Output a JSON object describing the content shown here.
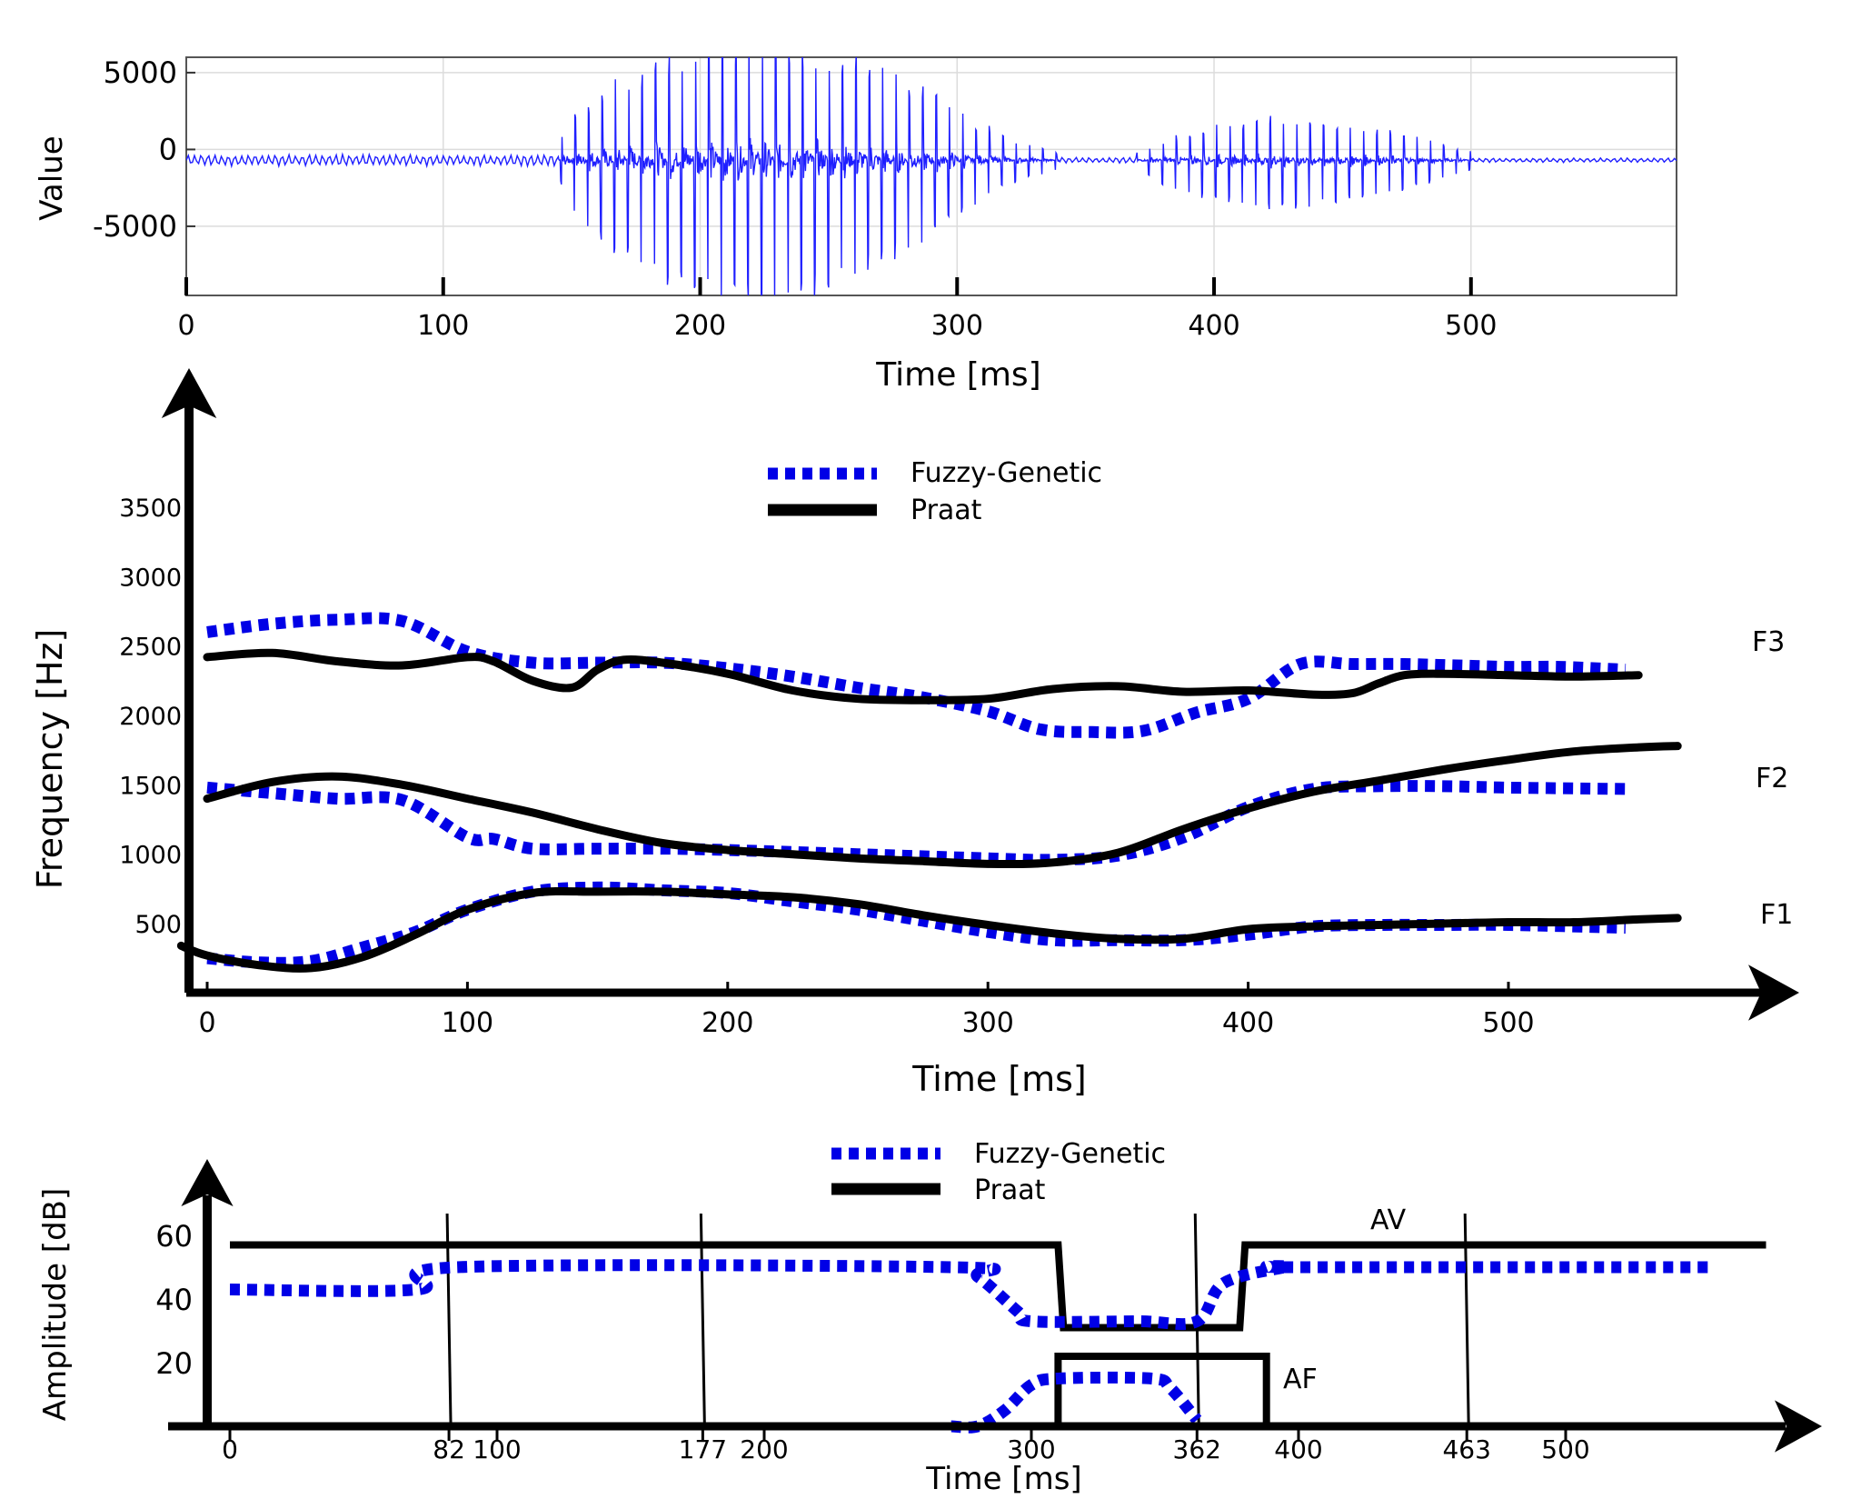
{
  "chart_data": [
    {
      "type": "line",
      "ylabel": "Value",
      "xlabel": "Time [ms]",
      "xlim": [
        0,
        580
      ],
      "ylim": [
        -9500,
        6000
      ],
      "xticks": [
        0,
        100,
        200,
        300,
        400,
        500
      ],
      "yticks": [
        5000,
        0,
        -5000
      ],
      "x_tick_labels": [
        "0",
        "100",
        "200",
        "300",
        "400",
        "500"
      ],
      "y_tick_labels": [
        "5000",
        "0",
        "-5000"
      ],
      "grid": true,
      "series": [
        {
          "color": "#1f1fff",
          "segments": [
            {
              "x_start": 0,
              "x_end": 145,
              "amplitude": 400,
              "baseline": -700
            },
            {
              "x_start": 145,
              "x_end": 340,
              "envelope": [
                [
                  145,
                  1000
                ],
                [
                  150,
                  3500
                ],
                [
                  170,
                  6000
                ],
                [
                  200,
                  8500
                ],
                [
                  225,
                  9000
                ],
                [
                  250,
                  8000
                ],
                [
                  275,
                  6000
                ],
                [
                  300,
                  3500
                ],
                [
                  320,
                  1500
                ],
                [
                  340,
                  500
                ]
              ]
            },
            {
              "x_start": 340,
              "x_end": 370,
              "amplitude": 200
            },
            {
              "x_start": 370,
              "x_end": 500,
              "envelope": [
                [
                  370,
                  500
                ],
                [
                  380,
                  1500
                ],
                [
                  400,
                  2500
                ],
                [
                  425,
                  3000
                ],
                [
                  450,
                  2500
                ],
                [
                  475,
                  1800
                ],
                [
                  500,
                  600
                ]
              ]
            },
            {
              "x_start": 500,
              "x_end": 580,
              "amplitude": 150
            }
          ]
        }
      ]
    },
    {
      "type": "line",
      "ylabel": "Frequency [Hz]",
      "xlabel": "Time [ms]",
      "xlim": [
        0,
        575
      ],
      "ylim": [
        0,
        3850
      ],
      "xticks": [
        0,
        100,
        200,
        300,
        400,
        500
      ],
      "yticks": [
        500,
        1000,
        1500,
        2000,
        2500,
        3000,
        3500
      ],
      "x_tick_labels": [
        "0",
        "100",
        "200",
        "300",
        "400",
        "500"
      ],
      "y_tick_labels": [
        "500",
        "1000",
        "1500",
        "2000",
        "2500",
        "3000",
        "3500"
      ],
      "legend": [
        "Fuzzy-Genetic",
        "Praat"
      ],
      "legend_position": "top-center",
      "annotations": [
        "F3",
        "F2",
        "F1"
      ],
      "series": [
        {
          "name": "Fuzzy-Genetic",
          "formant": "F3",
          "style": "dotted",
          "color": "#0000e6",
          "x": [
            0,
            25,
            50,
            75,
            100,
            125,
            150,
            175,
            200,
            225,
            250,
            275,
            300,
            320,
            340,
            360,
            380,
            400,
            420,
            440,
            460,
            480,
            500,
            520,
            545
          ],
          "y": [
            2600,
            2660,
            2690,
            2680,
            2460,
            2380,
            2380,
            2380,
            2340,
            2280,
            2200,
            2130,
            2030,
            1900,
            1880,
            1890,
            2020,
            2120,
            2370,
            2370,
            2370,
            2360,
            2350,
            2350,
            2330
          ]
        },
        {
          "name": "Praat",
          "formant": "F3",
          "style": "solid",
          "color": "#000000",
          "x": [
            0,
            25,
            50,
            75,
            100,
            110,
            125,
            140,
            150,
            160,
            175,
            200,
            225,
            250,
            275,
            300,
            325,
            350,
            375,
            400,
            425,
            440,
            450,
            460,
            475,
            500,
            525,
            550
          ],
          "y": [
            2420,
            2450,
            2390,
            2360,
            2420,
            2390,
            2250,
            2200,
            2330,
            2400,
            2380,
            2300,
            2180,
            2120,
            2110,
            2120,
            2190,
            2210,
            2170,
            2180,
            2150,
            2160,
            2230,
            2290,
            2300,
            2290,
            2280,
            2290
          ]
        },
        {
          "name": "Fuzzy-Genetic",
          "formant": "F2",
          "style": "dotted",
          "color": "#0000e6",
          "x": [
            0,
            25,
            50,
            75,
            100,
            110,
            125,
            150,
            175,
            200,
            250,
            300,
            325,
            350,
            375,
            400,
            425,
            450,
            475,
            500,
            545
          ],
          "y": [
            1480,
            1440,
            1400,
            1390,
            1120,
            1110,
            1040,
            1040,
            1040,
            1030,
            1000,
            970,
            960,
            990,
            1120,
            1340,
            1470,
            1490,
            1490,
            1480,
            1470
          ]
        },
        {
          "name": "Praat",
          "formant": "F2",
          "style": "solid",
          "color": "#000000",
          "x": [
            0,
            25,
            50,
            75,
            100,
            125,
            150,
            175,
            200,
            225,
            250,
            275,
            300,
            325,
            350,
            375,
            400,
            425,
            450,
            475,
            500,
            525,
            550,
            565
          ],
          "y": [
            1400,
            1520,
            1560,
            1500,
            1400,
            1300,
            1180,
            1080,
            1030,
            1000,
            970,
            950,
            930,
            940,
            1010,
            1180,
            1330,
            1450,
            1530,
            1610,
            1680,
            1740,
            1770,
            1780
          ]
        },
        {
          "name": "Fuzzy-Genetic",
          "formant": "F1",
          "style": "dotted",
          "color": "#0000e6",
          "x": [
            0,
            20,
            40,
            60,
            80,
            100,
            125,
            150,
            175,
            200,
            225,
            250,
            275,
            300,
            325,
            350,
            375,
            400,
            425,
            450,
            475,
            500,
            545
          ],
          "y": [
            250,
            220,
            230,
            330,
            440,
            600,
            730,
            760,
            740,
            720,
            660,
            600,
            520,
            440,
            380,
            380,
            380,
            420,
            480,
            490,
            490,
            490,
            470
          ]
        },
        {
          "name": "Praat",
          "formant": "F1",
          "style": "solid",
          "color": "#000000",
          "x": [
            -10,
            0,
            20,
            40,
            60,
            80,
            100,
            125,
            150,
            175,
            200,
            225,
            250,
            275,
            300,
            325,
            350,
            375,
            400,
            425,
            450,
            475,
            500,
            525,
            550,
            565
          ],
          "y": [
            340,
            270,
            200,
            180,
            260,
            420,
            600,
            720,
            730,
            730,
            710,
            690,
            640,
            560,
            490,
            430,
            390,
            390,
            460,
            480,
            490,
            500,
            510,
            510,
            530,
            540
          ]
        }
      ]
    },
    {
      "type": "line",
      "ylabel": "Amplitude [dB]",
      "xlabel": "Time [ms]",
      "xlim": [
        0,
        580
      ],
      "ylim": [
        0,
        70
      ],
      "xticks": [
        0,
        82,
        100,
        177,
        200,
        300,
        362,
        400,
        463,
        500
      ],
      "yticks": [
        20,
        40,
        60
      ],
      "x_tick_labels": [
        "0",
        "82",
        "100",
        "177",
        "200",
        "300",
        "362",
        "400",
        "463",
        "500"
      ],
      "y_tick_labels": [
        "20",
        "40",
        "60"
      ],
      "legend": [
        "Fuzzy-Genetic",
        "Praat"
      ],
      "legend_position": "top-center",
      "annotations": [
        "AV",
        "AF"
      ],
      "vertical_markers": [
        82,
        177,
        362,
        463
      ],
      "series": [
        {
          "name": "Praat",
          "parameter": "AV",
          "style": "solid",
          "color": "#000000",
          "x": [
            0,
            310,
            312,
            378,
            380,
            575
          ],
          "y": [
            57,
            57,
            31,
            31,
            57,
            57
          ]
        },
        {
          "name": "Fuzzy-Genetic",
          "parameter": "AV",
          "style": "dotted",
          "color": "#0000e6",
          "x": [
            0,
            70,
            85,
            270,
            280,
            295,
            300,
            340,
            362,
            372,
            395,
            400,
            555
          ],
          "y": [
            43,
            43,
            50,
            50,
            47,
            36,
            33,
            33,
            33,
            45,
            50,
            50,
            50
          ]
        },
        {
          "name": "Praat",
          "parameter": "AF",
          "style": "solid",
          "color": "#000000",
          "x": [
            0,
            310,
            310,
            388,
            388,
            580
          ],
          "y": [
            0,
            0,
            22,
            22,
            0,
            0
          ]
        },
        {
          "name": "Fuzzy-Genetic",
          "parameter": "AF",
          "style": "dotted",
          "color": "#0000e6",
          "x": [
            270,
            280,
            290,
            300,
            310,
            345,
            352,
            362
          ],
          "y": [
            0,
            0,
            5,
            13,
            15,
            15,
            12,
            2
          ]
        }
      ]
    }
  ]
}
